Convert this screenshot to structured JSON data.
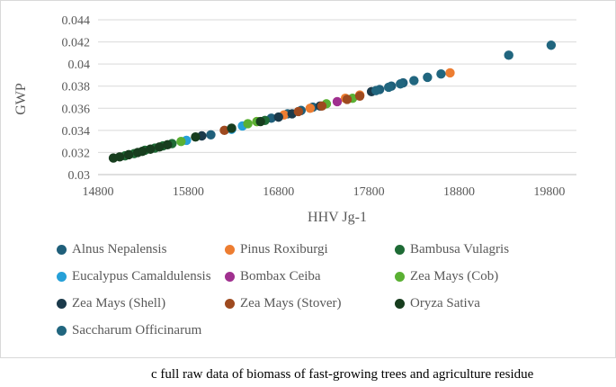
{
  "chart_data": {
    "type": "scatter",
    "title": "",
    "xlabel": "HHV Jg-1",
    "ylabel": "GWP",
    "xlim": [
      14800,
      20100
    ],
    "ylim": [
      0.03,
      0.044
    ],
    "x_ticks": [
      "14800",
      "15800",
      "16800",
      "17800",
      "18800",
      "19800"
    ],
    "y_ticks": [
      "0.03",
      "0.032",
      "0.034",
      "0.036",
      "0.038",
      "0.04",
      "0.042",
      "0.044"
    ],
    "grid": "horizontal",
    "legend_position": "bottom",
    "series": [
      {
        "name": "Alnus Nepalensis",
        "color": "#1f5f7a",
        "x": [
          16050,
          16720,
          16900,
          17050,
          17180,
          17920,
          18050,
          18180
        ],
        "y": [
          0.0336,
          0.0351,
          0.0355,
          0.0358,
          0.0361,
          0.0377,
          0.038,
          0.0383
        ]
      },
      {
        "name": "Pinus Roxiburgi",
        "color": "#ed7d31",
        "x": [
          16560,
          16860,
          17150,
          17540,
          17700,
          18700
        ],
        "y": [
          0.0348,
          0.0354,
          0.036,
          0.0369,
          0.0372,
          0.0392
        ]
      },
      {
        "name": "Bambusa Vulagris",
        "color": "#1e6b35",
        "x": [
          15100,
          15200,
          15320,
          15430,
          15520,
          15620,
          16650
        ],
        "y": [
          0.0317,
          0.0319,
          0.0322,
          0.0324,
          0.0326,
          0.0328,
          0.0349
        ]
      },
      {
        "name": "Eucalypus Camaldulensis",
        "color": "#26a0d8",
        "x": [
          15780,
          16280,
          16400
        ],
        "y": [
          0.0331,
          0.0341,
          0.0344
        ]
      },
      {
        "name": "Bombax Ceiba",
        "color": "#a0308f",
        "x": [
          17450
        ],
        "y": [
          0.0366
        ]
      },
      {
        "name": "Zea Mays (Cob)",
        "color": "#5ab033",
        "x": [
          15720,
          16460,
          16560,
          17330,
          17620
        ],
        "y": [
          0.033,
          0.0346,
          0.0348,
          0.0364,
          0.0369
        ]
      },
      {
        "name": "Zea Mays (Shell)",
        "color": "#1b3a4b",
        "x": [
          15950,
          16800,
          16950,
          17260,
          17830
        ],
        "y": [
          0.0335,
          0.0352,
          0.0355,
          0.0362,
          0.0375
        ]
      },
      {
        "name": "Zea Mays (Stover)",
        "color": "#9e4a1f",
        "x": [
          16200,
          17020,
          17280,
          17560,
          17700
        ],
        "y": [
          0.034,
          0.0357,
          0.0362,
          0.0368,
          0.0371
        ]
      },
      {
        "name": "Oryza Sativa",
        "color": "#173d1e",
        "x": [
          14970,
          15040,
          15140,
          15240,
          15290,
          15380,
          15480,
          15570,
          15880,
          16280,
          16600
        ],
        "y": [
          0.0315,
          0.0316,
          0.0318,
          0.032,
          0.0321,
          0.0323,
          0.0325,
          0.0327,
          0.0334,
          0.0342,
          0.0348
        ]
      },
      {
        "name": "Saccharum Officinarum",
        "color": "#21667f",
        "x": [
          17880,
          18020,
          18150,
          18300,
          18450,
          18600,
          19350,
          19820
        ],
        "y": [
          0.0376,
          0.0379,
          0.0382,
          0.0385,
          0.0388,
          0.0391,
          0.0408,
          0.0417
        ]
      }
    ]
  },
  "caption": "c full raw data of biomass of fast-growing trees and agriculture residue"
}
